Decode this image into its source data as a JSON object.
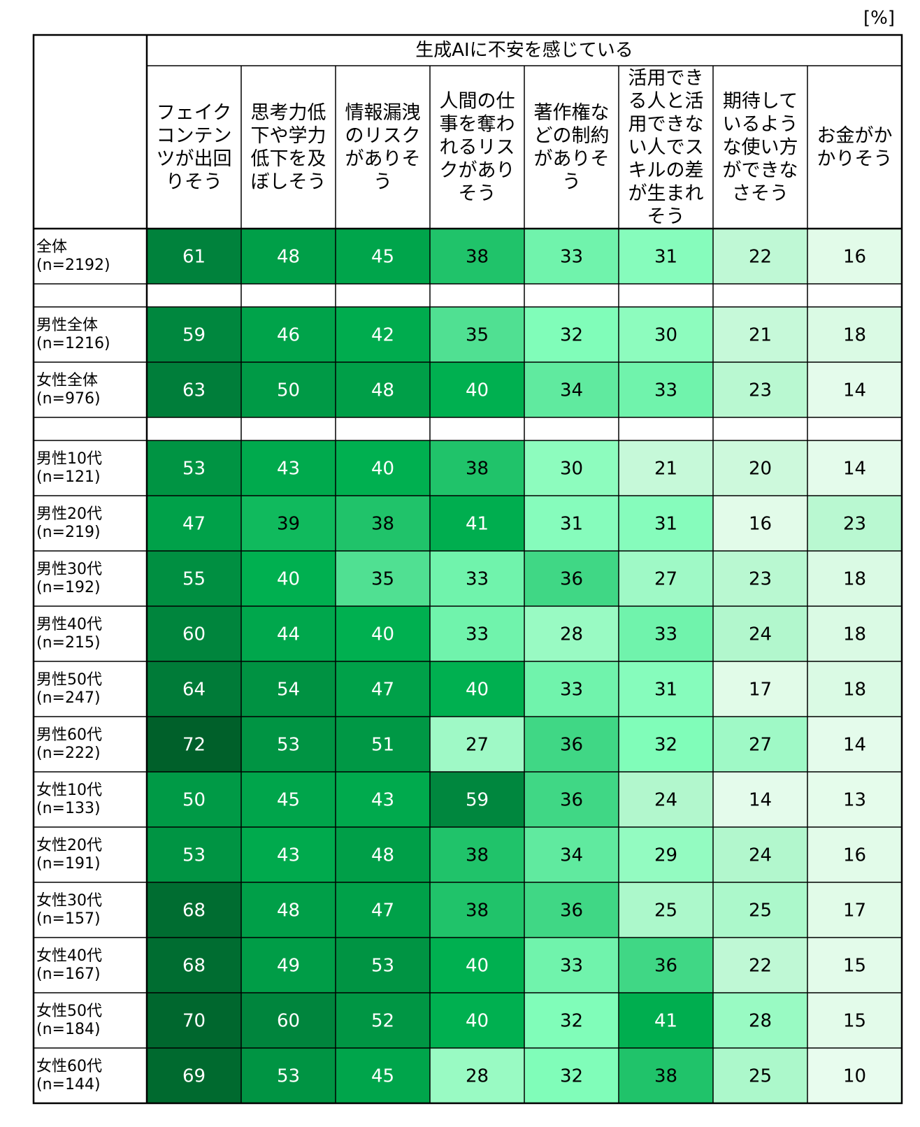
{
  "unit_label": "[%]",
  "chart_data": {
    "type": "heatmap",
    "group_header": "生成AIに不安を感じている",
    "columns": [
      "フェイクコンテンツが出回りそう",
      "思考力低下や学力低下を及ぼしそう",
      "情報漏洩のリスクがありそう",
      "人間の仕事を奪われるリスクがありそう",
      "著作権などの制約がありそう",
      "活用できる人と活用できない人でスキルの差が生まれそう",
      "期待しているような使い方ができなさそう",
      "お金がかかりそう"
    ],
    "header_lines": [
      [
        "フェイク",
        "コンテン",
        "ツが出回",
        "りそう"
      ],
      [
        "思考力低",
        "下や学力",
        "低下を及",
        "ぼしそう"
      ],
      [
        "情報漏洩",
        "のリスク",
        "がありそ",
        "う"
      ],
      [
        "人間の仕",
        "事を奪わ",
        "れるリス",
        "クがあり",
        "そう"
      ],
      [
        "著作権な",
        "どの制約",
        "がありそ",
        "う"
      ],
      [
        "活用でき",
        "る人と活",
        "用できな",
        "い人でス",
        "キルの差",
        "が生まれ",
        "そう"
      ],
      [
        "期待して",
        "いるよう",
        "な使い方",
        "ができな",
        "さそう"
      ],
      [
        "お金がか",
        "かりそう"
      ]
    ],
    "rows": [
      {
        "label": [
          "全体",
          "(n=2192)"
        ],
        "values": [
          61,
          48,
          45,
          38,
          33,
          31,
          22,
          16
        ]
      },
      {
        "spacer": true
      },
      {
        "label": [
          "男性全体",
          "(n=1216)"
        ],
        "values": [
          59,
          46,
          42,
          35,
          32,
          30,
          21,
          18
        ]
      },
      {
        "label": [
          "女性全体",
          "(n=976)"
        ],
        "values": [
          63,
          50,
          48,
          40,
          34,
          33,
          23,
          14
        ]
      },
      {
        "spacer": true
      },
      {
        "label": [
          "男性10代",
          "(n=121)"
        ],
        "values": [
          53,
          43,
          40,
          38,
          30,
          21,
          20,
          14
        ]
      },
      {
        "label": [
          "男性20代",
          "(n=219)"
        ],
        "values": [
          47,
          39,
          38,
          41,
          31,
          31,
          16,
          23
        ]
      },
      {
        "label": [
          "男性30代",
          "(n=192)"
        ],
        "values": [
          55,
          40,
          35,
          33,
          36,
          27,
          23,
          18
        ]
      },
      {
        "label": [
          "男性40代",
          "(n=215)"
        ],
        "values": [
          60,
          44,
          40,
          33,
          28,
          33,
          24,
          18
        ]
      },
      {
        "label": [
          "男性50代",
          "(n=247)"
        ],
        "values": [
          64,
          54,
          47,
          40,
          33,
          31,
          17,
          18
        ]
      },
      {
        "label": [
          "男性60代",
          "(n=222)"
        ],
        "values": [
          72,
          53,
          51,
          27,
          36,
          32,
          27,
          14
        ]
      },
      {
        "label": [
          "女性10代",
          "(n=133)"
        ],
        "values": [
          50,
          45,
          43,
          59,
          36,
          24,
          14,
          13
        ]
      },
      {
        "label": [
          "女性20代",
          "(n=191)"
        ],
        "values": [
          53,
          43,
          48,
          38,
          34,
          29,
          24,
          16
        ]
      },
      {
        "label": [
          "女性30代",
          "(n=157)"
        ],
        "values": [
          68,
          48,
          47,
          38,
          36,
          25,
          25,
          17
        ]
      },
      {
        "label": [
          "女性40代",
          "(n=167)"
        ],
        "values": [
          68,
          49,
          53,
          40,
          33,
          36,
          22,
          15
        ]
      },
      {
        "label": [
          "女性50代",
          "(n=184)"
        ],
        "values": [
          70,
          60,
          52,
          40,
          32,
          41,
          28,
          15
        ]
      },
      {
        "label": [
          "女性60代",
          "(n=144)"
        ],
        "values": [
          69,
          53,
          45,
          28,
          32,
          38,
          25,
          10
        ]
      }
    ]
  }
}
